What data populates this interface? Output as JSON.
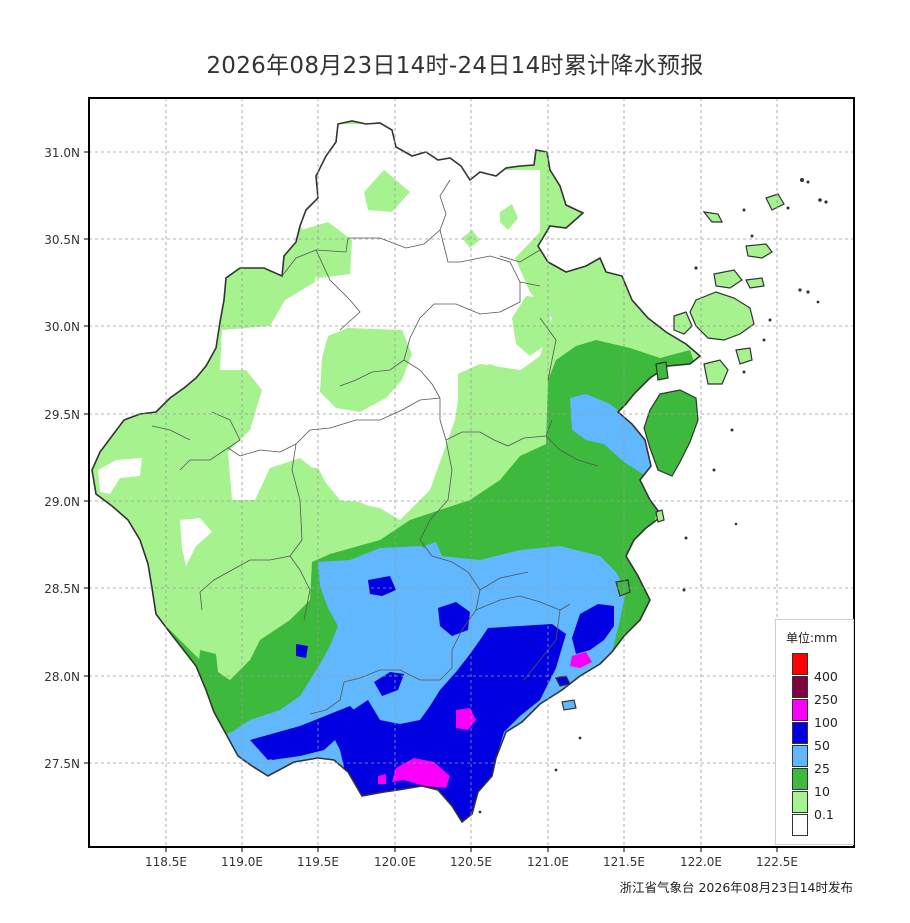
{
  "title": "2026年08月23日14时-24日14时累计降水预报",
  "footer": "浙江省气象台 2026年08月23日14时发布",
  "map": {
    "lat_ticks": [
      "31.0N",
      "30.5N",
      "30.0N",
      "29.5N",
      "29.0N",
      "28.5N",
      "28.0N",
      "27.5N"
    ],
    "lon_ticks": [
      "118.5E",
      "119.0E",
      "119.5E",
      "120.0E",
      "120.5E",
      "121.0E",
      "121.5E",
      "122.0E",
      "122.5E"
    ],
    "colors": {
      "c0": "#ffffff",
      "c1": "#a6f28f",
      "c2": "#3dba3d",
      "c3": "#61b8ff",
      "c4": "#0000e1",
      "c5": "#fa00fa",
      "c6": "#800040",
      "c7": "#ff0000"
    }
  },
  "legend": {
    "title": "单位:mm",
    "items": [
      {
        "label": "",
        "color": "#ff0000"
      },
      {
        "label": "400",
        "color": "#800040"
      },
      {
        "label": "250",
        "color": "#fa00fa"
      },
      {
        "label": "100",
        "color": "#0000e1"
      },
      {
        "label": "50",
        "color": "#61b8ff"
      },
      {
        "label": "25",
        "color": "#3dba3d"
      },
      {
        "label": "10",
        "color": "#a6f28f"
      },
      {
        "label": "0.1",
        "color": "#ffffff"
      }
    ]
  }
}
